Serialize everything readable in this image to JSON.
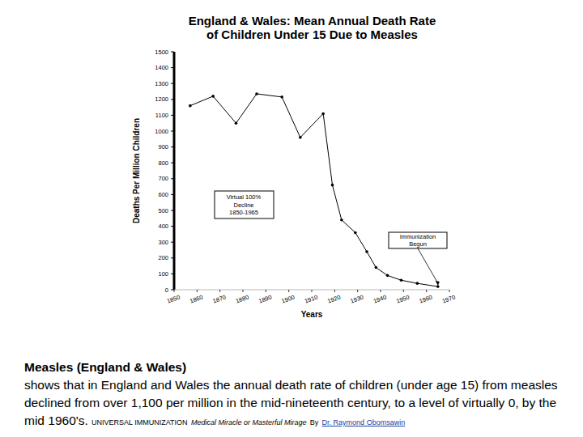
{
  "chart_data": {
    "type": "line",
    "title": "England & Wales: Mean Annual Death Rate of Children Under 15 Due to Measles",
    "x_label": "Years",
    "y_label": "Deaths Per Million Children",
    "x": [
      1857,
      1867,
      1877,
      1886,
      1897,
      1905,
      1915,
      1919,
      1923,
      1929,
      1934,
      1938,
      1943,
      1949,
      1956,
      1965
    ],
    "values": [
      1160,
      1220,
      1050,
      1235,
      1215,
      960,
      1110,
      660,
      440,
      360,
      240,
      140,
      90,
      60,
      40,
      20
    ],
    "color": "#000000",
    "marker": "circle",
    "line_style": "solid",
    "xlim": [
      1850,
      1970
    ],
    "xticks": [
      1850,
      1860,
      1870,
      1880,
      1890,
      1900,
      1910,
      1920,
      1930,
      1940,
      1950,
      1960,
      1970
    ],
    "ylim": [
      0,
      1500
    ],
    "yticks": [
      0,
      100,
      200,
      300,
      400,
      500,
      600,
      700,
      800,
      900,
      1000,
      1100,
      1200,
      1300,
      1400,
      1500
    ],
    "grid": false,
    "annotations": [
      {
        "lines": [
          "Virtual 100%",
          "Decline",
          "1850-1965"
        ]
      },
      {
        "lines": [
          "Immunization",
          "Begun"
        ],
        "x": 1965,
        "y": 20
      }
    ]
  },
  "caption": {
    "heading": "Measles (England & Wales)",
    "text": "shows that in England and Wales the annual death rate of children (under age 15) from measles declined from over 1,100 per million in the mid-nineteenth century, to a level of virtually 0, by the mid 1960's.",
    "source": "UNIVERSAL IMMUNIZATION",
    "source_subtitle": "Medical Miracle or Masterful Mirage",
    "by": "By",
    "author": "Dr. Raymond Obomsawin"
  }
}
